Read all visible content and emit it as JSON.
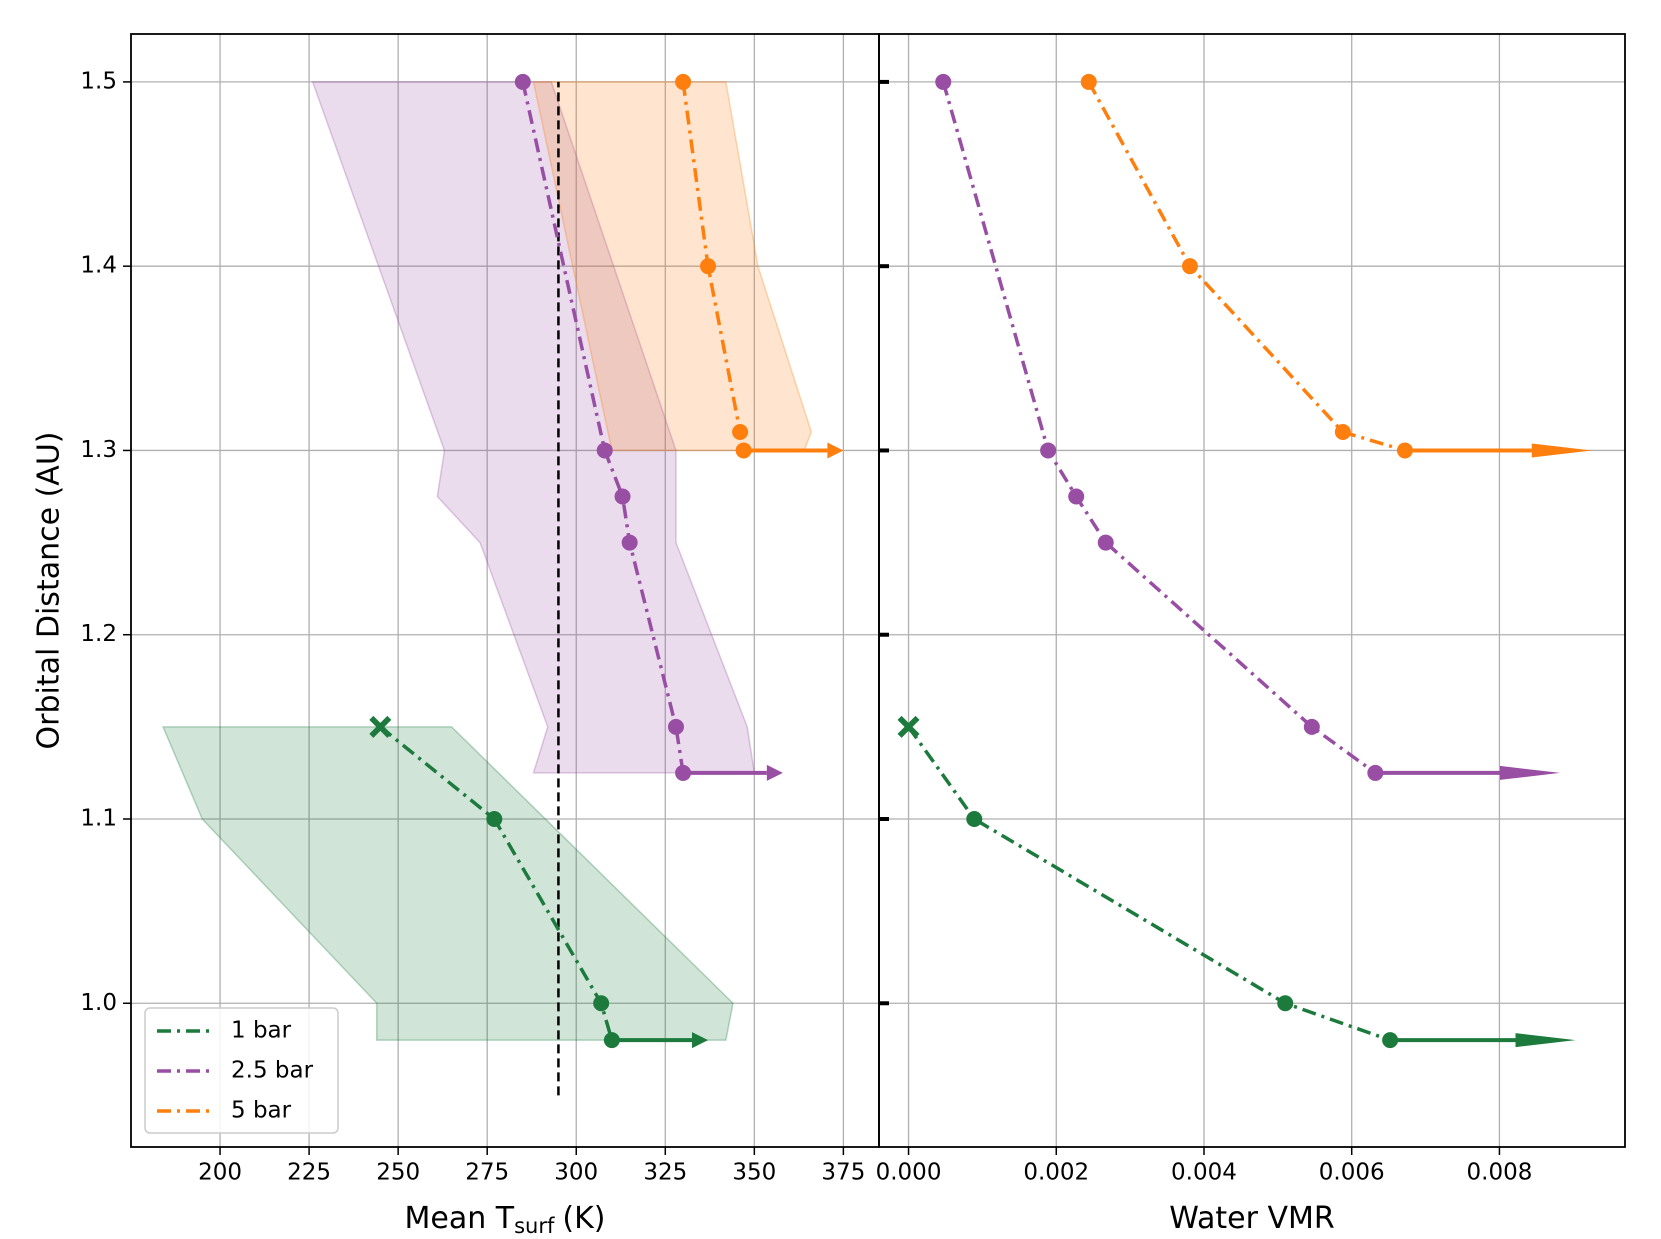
{
  "chart_data": [
    {
      "type": "line",
      "xlabel": "Mean T",
      "xlabel_sub": "surf",
      "xlabel_suffix": "(K)",
      "ylabel": "Orbital Distance (AU)",
      "xlim": [
        175,
        385
      ],
      "ylim": [
        0.922,
        1.526
      ],
      "xticks": [
        200,
        225,
        250,
        275,
        300,
        325,
        350,
        375
      ],
      "yticks": [
        {
          "value": 1.0,
          "label": "1.0"
        },
        {
          "value": 1.1,
          "label": "1.1"
        },
        {
          "value": 1.2,
          "label": "1.2"
        },
        {
          "value": 1.3,
          "label": "1.3"
        },
        {
          "value": 1.4,
          "label": "1.4"
        },
        {
          "value": 1.5,
          "label": "1.5"
        }
      ],
      "grid": true,
      "legend": "lower left",
      "vline": {
        "x": 295,
        "y": [
          0.95,
          1.5
        ]
      },
      "series": [
        {
          "name": "1 bar",
          "color": "#1b7a3c",
          "first_marker": "X",
          "x": [
            245,
            277,
            307,
            310
          ],
          "values": [
            1.15,
            1.1,
            1.0,
            0.98
          ],
          "arrow_end": 337,
          "band_x": [
            184,
            265,
            344,
            342,
            244,
            244,
            195
          ],
          "band_y": [
            1.15,
            1.15,
            1.0,
            0.98,
            0.98,
            1.0,
            1.1
          ]
        },
        {
          "name": "2.5 bar",
          "color": "#984ea3",
          "x": [
            285,
            308,
            313,
            315,
            328,
            330
          ],
          "values": [
            1.5,
            1.3,
            1.275,
            1.25,
            1.15,
            1.125
          ],
          "arrow_end": 358,
          "band_x": [
            226,
            293,
            328,
            328,
            348,
            350,
            288,
            292,
            273,
            261,
            263
          ],
          "band_y": [
            1.5,
            1.5,
            1.3,
            1.25,
            1.15,
            1.125,
            1.125,
            1.15,
            1.25,
            1.275,
            1.3
          ]
        },
        {
          "name": "5 bar",
          "color": "#ff7f0e",
          "x": [
            330,
            337,
            346,
            347
          ],
          "values": [
            1.5,
            1.4,
            1.31,
            1.3
          ],
          "arrow_end": 375,
          "band_x": [
            288,
            342,
            351,
            366,
            364,
            310
          ],
          "band_y": [
            1.5,
            1.5,
            1.4,
            1.31,
            1.3,
            1.3
          ]
        }
      ]
    },
    {
      "type": "line",
      "xlabel": "Water VMR",
      "xlim": [
        -0.0004,
        0.0097
      ],
      "ylim": [
        0.922,
        1.526
      ],
      "xticks": [
        {
          "value": 0,
          "label": "0.000"
        },
        {
          "value": 0.002,
          "label": "0.002"
        },
        {
          "value": 0.004,
          "label": "0.004"
        },
        {
          "value": 0.006,
          "label": "0.006"
        },
        {
          "value": 0.008,
          "label": "0.008"
        }
      ],
      "yticks": [
        1.0,
        1.1,
        1.2,
        1.3,
        1.4,
        1.5
      ],
      "grid": true,
      "series": [
        {
          "color": "#1b7a3c",
          "first_marker": "X",
          "x": [
            0.0,
            0.00089,
            0.0051,
            0.00652
          ],
          "values": [
            1.15,
            1.1,
            1.0,
            0.98
          ],
          "arrow_end": 0.00903
        },
        {
          "color": "#984ea3",
          "x": [
            0.00047,
            0.00189,
            0.00227,
            0.00267,
            0.00546,
            0.00632
          ],
          "values": [
            1.5,
            1.3,
            1.275,
            1.25,
            1.15,
            1.125
          ],
          "arrow_end": 0.00882
        },
        {
          "color": "#ff7f0e",
          "x": [
            0.00244,
            0.00381,
            0.00588,
            0.00672
          ],
          "values": [
            1.5,
            1.4,
            1.31,
            1.3
          ],
          "arrow_end": 0.00925
        }
      ]
    }
  ]
}
